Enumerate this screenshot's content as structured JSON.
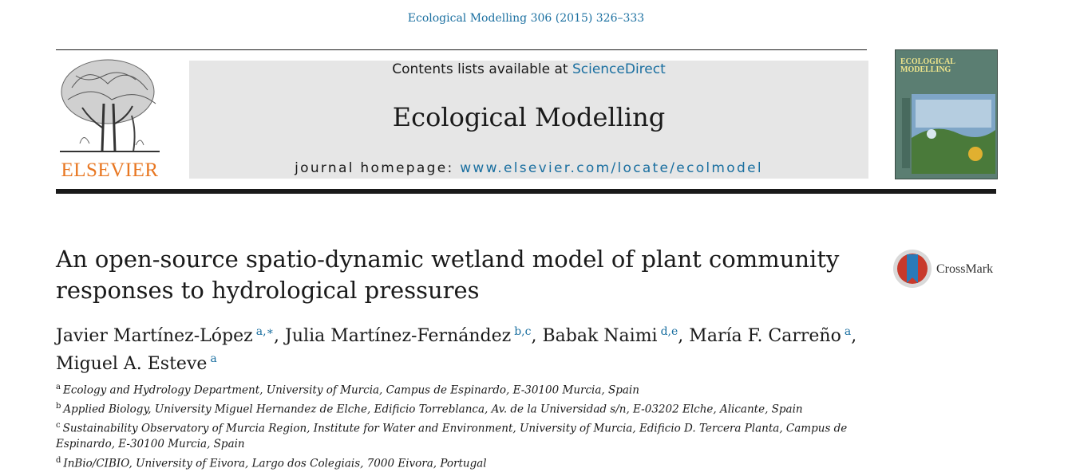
{
  "header": {
    "citation": "Ecological Modelling 306 (2015) 326–333",
    "publisher": "ELSEVIER",
    "contents_prefix": "Contents lists available at ",
    "contents_link": "ScienceDirect",
    "journal_title": "Ecological Modelling",
    "homepage_prefix": "journal homepage: ",
    "homepage_url": "www.elsevier.com/locate/ecolmodel",
    "cover_title_line1": "ECOLOGICAL",
    "cover_title_line2": "MODELLING"
  },
  "article": {
    "title": "An open-source spatio-dynamic wetland model of plant community responses to hydrological pressures",
    "crossmark_label": "CrossMark",
    "authors": [
      {
        "name": "Javier Martínez-López",
        "marks": "a,∗",
        "sep": ", "
      },
      {
        "name": "Julia Martínez-Fernández",
        "marks": "b,c",
        "sep": ", "
      },
      {
        "name": "Babak Naimi",
        "marks": "d,e",
        "sep": ", "
      },
      {
        "name": "María F. Carreño",
        "marks": "a",
        "sep": ","
      },
      {
        "name": "Miguel A. Esteve",
        "marks": "a",
        "sep": ""
      }
    ],
    "affiliations": [
      {
        "mark": "a",
        "text": "Ecology and Hydrology Department, University of Murcia, Campus de Espinardo, E-30100 Murcia, Spain"
      },
      {
        "mark": "b",
        "text": "Applied Biology, University Miguel Hernandez de Elche, Edificio Torreblanca, Av. de la Universidad s/n, E-03202 Elche, Alicante, Spain"
      },
      {
        "mark": "c",
        "text": "Sustainability Observatory of Murcia Region, Institute for Water and Environment, University of Murcia, Edificio D. Tercera Planta, Campus de Espinardo, E-30100 Murcia, Spain"
      },
      {
        "mark": "d",
        "text": "InBio/CIBIO, University of Eivora, Largo dos Colegiais, 7000 Eivora, Portugal"
      }
    ]
  },
  "colors": {
    "link": "#1a6fa0",
    "elsevier_orange": "#e87722",
    "banner_gray": "#e6e6e6"
  }
}
